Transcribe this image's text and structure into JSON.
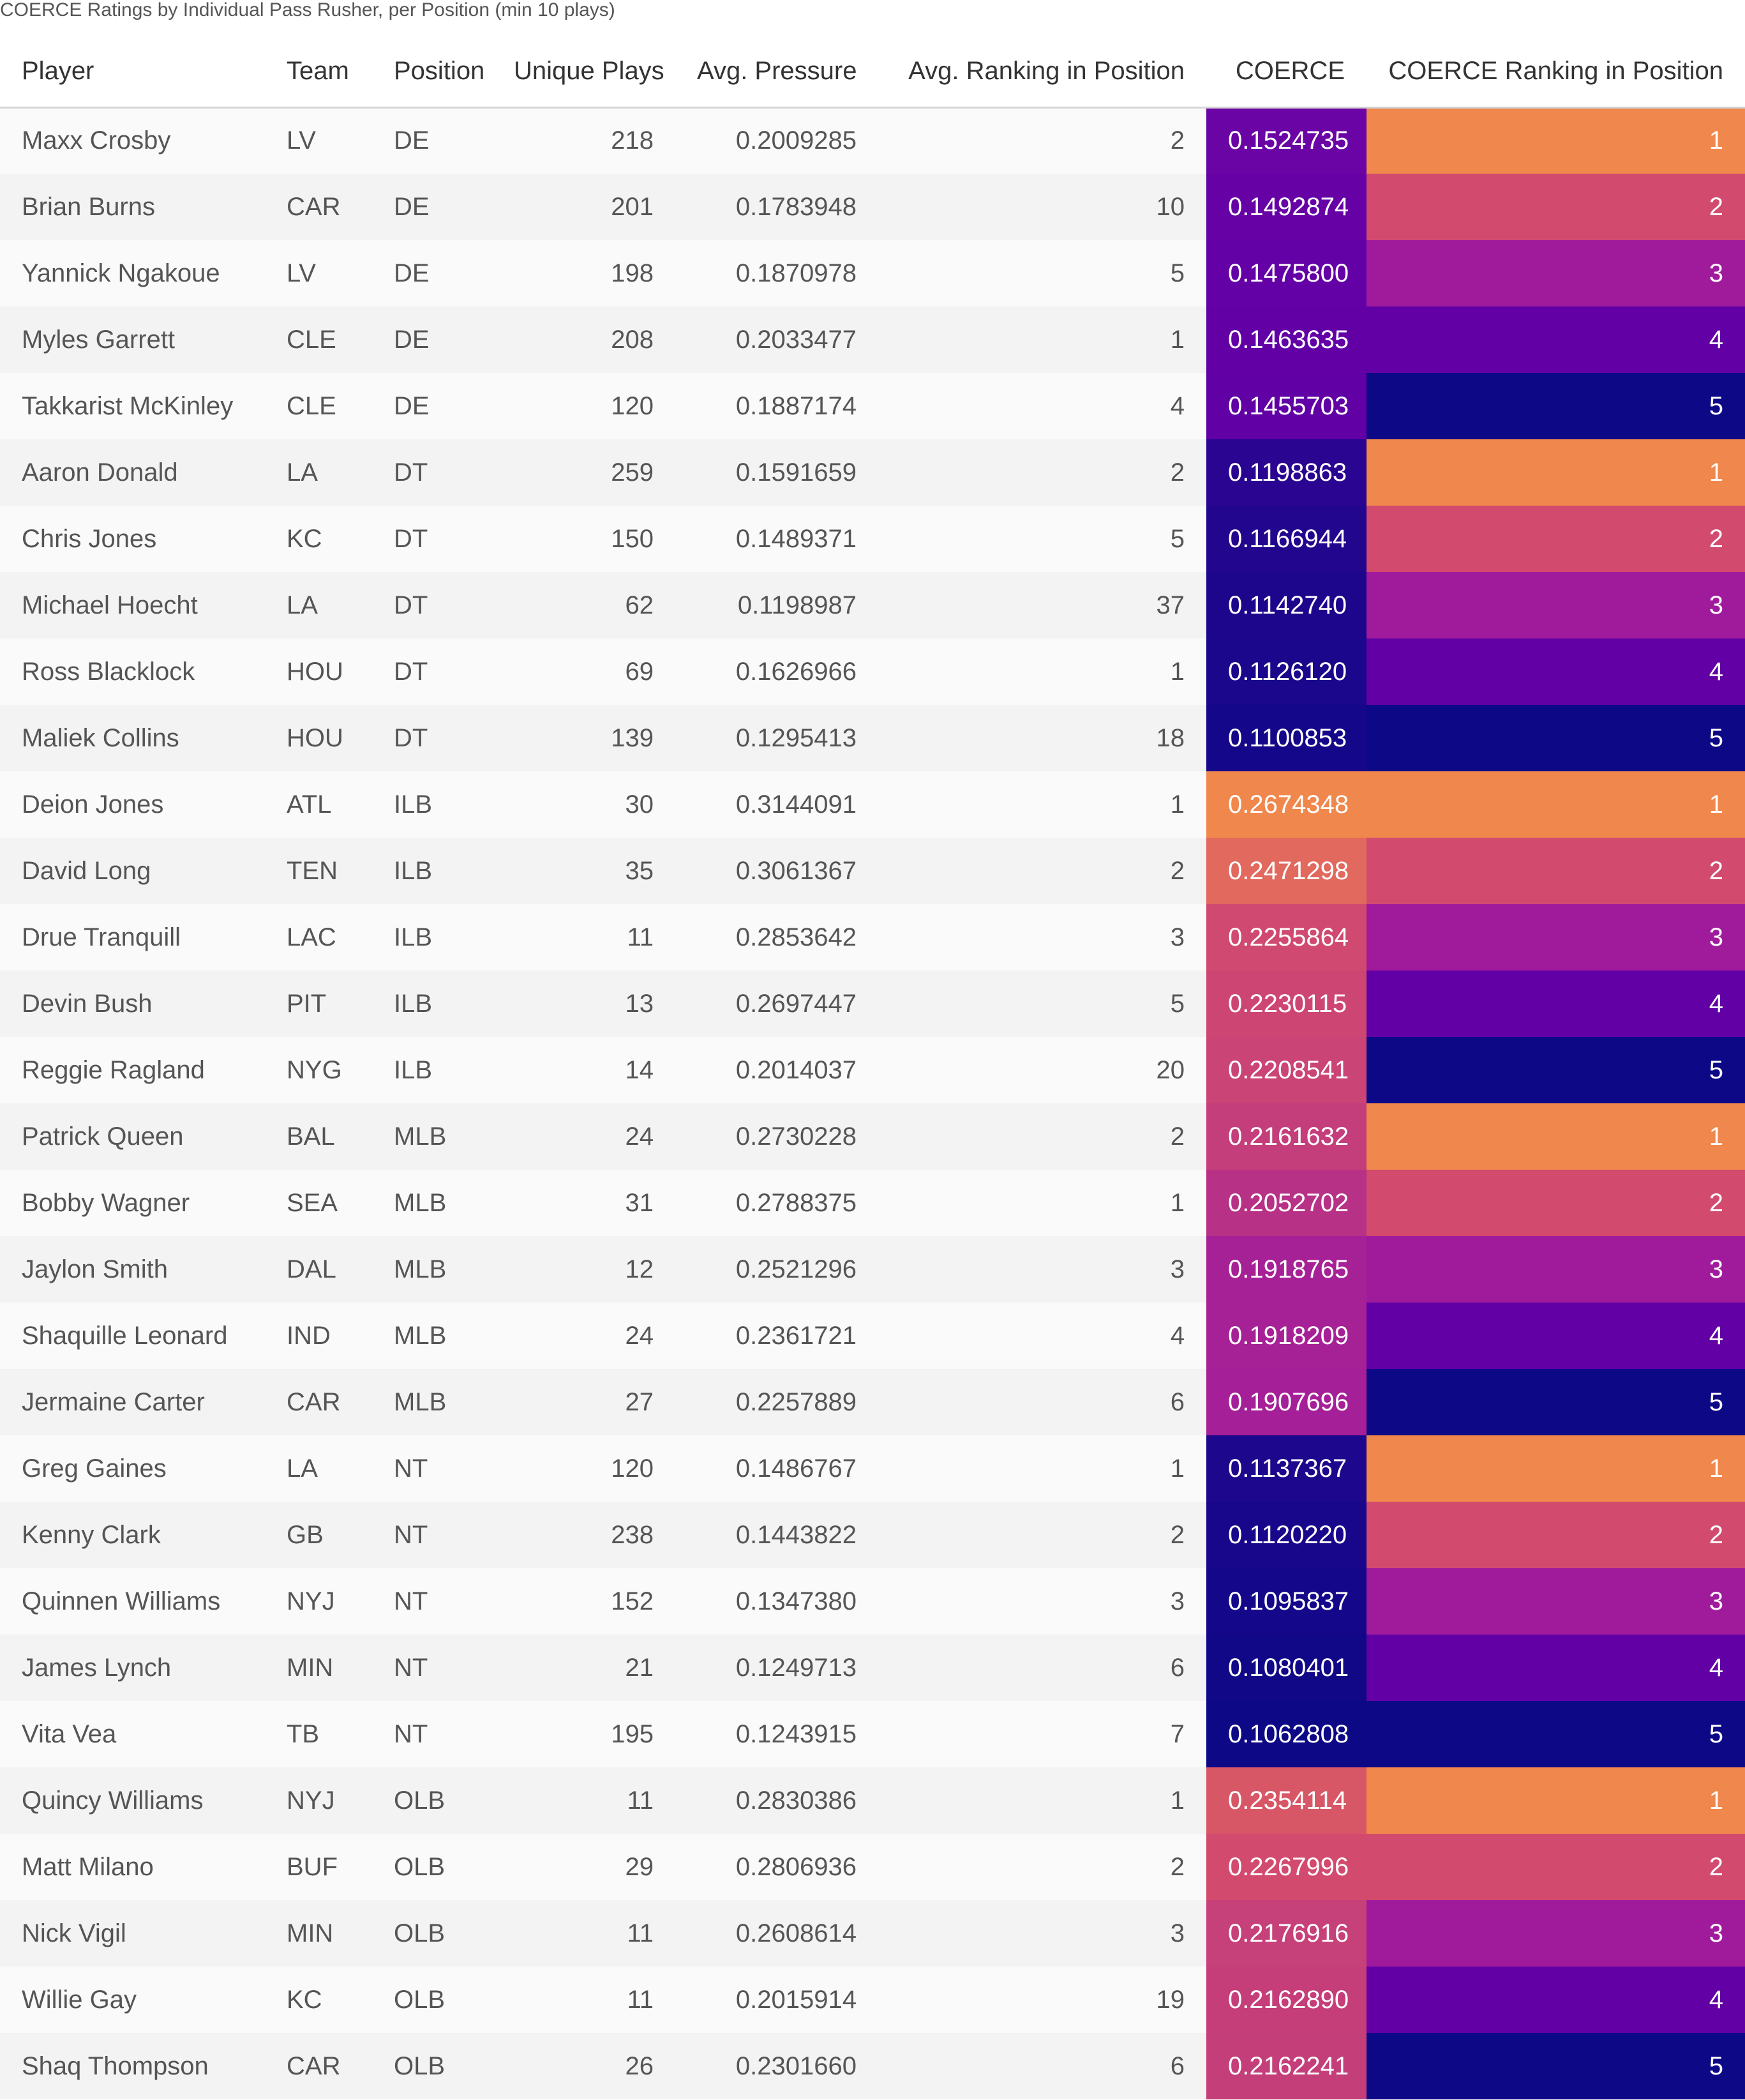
{
  "caption": "COERCE Ratings by Individual Pass Rusher, per Position (min 10 plays)",
  "colors": {
    "rank_scale": [
      "#f0874c",
      "#d24b6e",
      "#a01b9c",
      "#6200a6",
      "#0d0886"
    ],
    "coerce_scale_low": "#0d0886",
    "coerce_scale_high": "#f0874c"
  },
  "chart_data": {
    "type": "table",
    "title": "COERCE Ratings by Individual Pass Rusher, per Position (min 10 plays)",
    "columns": [
      "Player",
      "Team",
      "Position",
      "Unique Plays",
      "Avg. Pressure",
      "Avg. Ranking in Position",
      "COERCE",
      "COERCE Ranking in Position"
    ],
    "rows": [
      [
        "Maxx Crosby",
        "LV",
        "DE",
        "218",
        "0.2009285",
        "2",
        "0.1524735",
        "1"
      ],
      [
        "Brian Burns",
        "CAR",
        "DE",
        "201",
        "0.1783948",
        "10",
        "0.1492874",
        "2"
      ],
      [
        "Yannick Ngakoue",
        "LV",
        "DE",
        "198",
        "0.1870978",
        "5",
        "0.1475800",
        "3"
      ],
      [
        "Myles Garrett",
        "CLE",
        "DE",
        "208",
        "0.2033477",
        "1",
        "0.1463635",
        "4"
      ],
      [
        "Takkarist McKinley",
        "CLE",
        "DE",
        "120",
        "0.1887174",
        "4",
        "0.1455703",
        "5"
      ],
      [
        "Aaron Donald",
        "LA",
        "DT",
        "259",
        "0.1591659",
        "2",
        "0.1198863",
        "1"
      ],
      [
        "Chris Jones",
        "KC",
        "DT",
        "150",
        "0.1489371",
        "5",
        "0.1166944",
        "2"
      ],
      [
        "Michael Hoecht",
        "LA",
        "DT",
        "62",
        "0.1198987",
        "37",
        "0.1142740",
        "3"
      ],
      [
        "Ross Blacklock",
        "HOU",
        "DT",
        "69",
        "0.1626966",
        "1",
        "0.1126120",
        "4"
      ],
      [
        "Maliek Collins",
        "HOU",
        "DT",
        "139",
        "0.1295413",
        "18",
        "0.1100853",
        "5"
      ],
      [
        "Deion Jones",
        "ATL",
        "ILB",
        "30",
        "0.3144091",
        "1",
        "0.2674348",
        "1"
      ],
      [
        "David Long",
        "TEN",
        "ILB",
        "35",
        "0.3061367",
        "2",
        "0.2471298",
        "2"
      ],
      [
        "Drue Tranquill",
        "LAC",
        "ILB",
        "11",
        "0.2853642",
        "3",
        "0.2255864",
        "3"
      ],
      [
        "Devin Bush",
        "PIT",
        "ILB",
        "13",
        "0.2697447",
        "5",
        "0.2230115",
        "4"
      ],
      [
        "Reggie Ragland",
        "NYG",
        "ILB",
        "14",
        "0.2014037",
        "20",
        "0.2208541",
        "5"
      ],
      [
        "Patrick Queen",
        "BAL",
        "MLB",
        "24",
        "0.2730228",
        "2",
        "0.2161632",
        "1"
      ],
      [
        "Bobby Wagner",
        "SEA",
        "MLB",
        "31",
        "0.2788375",
        "1",
        "0.2052702",
        "2"
      ],
      [
        "Jaylon Smith",
        "DAL",
        "MLB",
        "12",
        "0.2521296",
        "3",
        "0.1918765",
        "3"
      ],
      [
        "Shaquille Leonard",
        "IND",
        "MLB",
        "24",
        "0.2361721",
        "4",
        "0.1918209",
        "4"
      ],
      [
        "Jermaine Carter",
        "CAR",
        "MLB",
        "27",
        "0.2257889",
        "6",
        "0.1907696",
        "5"
      ],
      [
        "Greg Gaines",
        "LA",
        "NT",
        "120",
        "0.1486767",
        "1",
        "0.1137367",
        "1"
      ],
      [
        "Kenny Clark",
        "GB",
        "NT",
        "238",
        "0.1443822",
        "2",
        "0.1120220",
        "2"
      ],
      [
        "Quinnen Williams",
        "NYJ",
        "NT",
        "152",
        "0.1347380",
        "3",
        "0.1095837",
        "3"
      ],
      [
        "James Lynch",
        "MIN",
        "NT",
        "21",
        "0.1249713",
        "6",
        "0.1080401",
        "4"
      ],
      [
        "Vita Vea",
        "TB",
        "NT",
        "195",
        "0.1243915",
        "7",
        "0.1062808",
        "5"
      ],
      [
        "Quincy Williams",
        "NYJ",
        "OLB",
        "11",
        "0.2830386",
        "1",
        "0.2354114",
        "1"
      ],
      [
        "Matt Milano",
        "BUF",
        "OLB",
        "29",
        "0.2806936",
        "2",
        "0.2267996",
        "2"
      ],
      [
        "Nick Vigil",
        "MIN",
        "OLB",
        "11",
        "0.2608614",
        "3",
        "0.2176916",
        "3"
      ],
      [
        "Willie Gay",
        "KC",
        "OLB",
        "11",
        "0.2015914",
        "19",
        "0.2162890",
        "4"
      ],
      [
        "Shaq Thompson",
        "CAR",
        "OLB",
        "26",
        "0.2301660",
        "6",
        "0.2162241",
        "5"
      ]
    ]
  }
}
